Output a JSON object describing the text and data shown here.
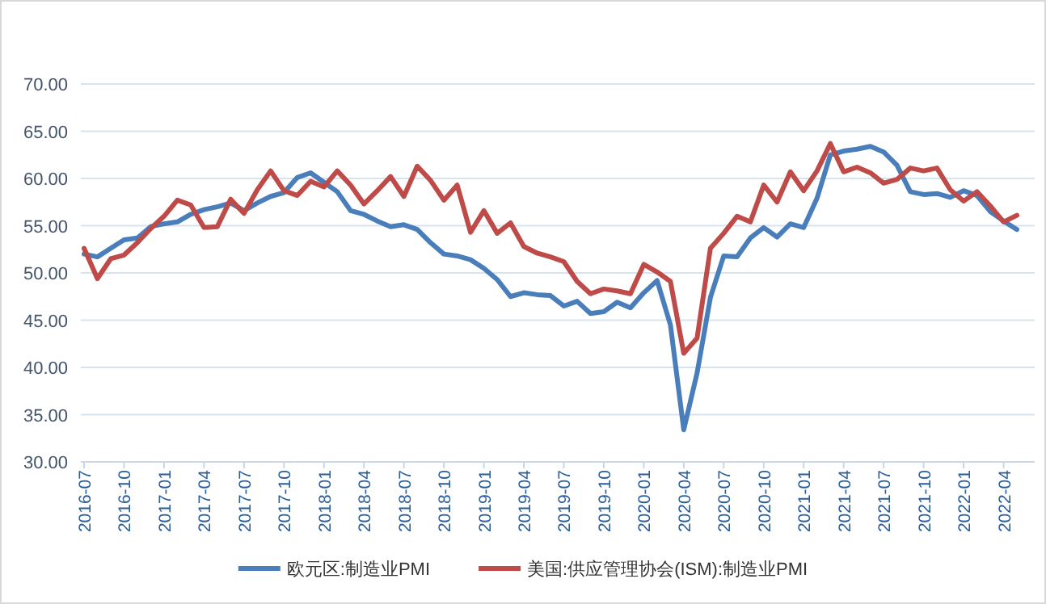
{
  "chart_data": {
    "type": "line",
    "categories": [
      "2016-07",
      null,
      null,
      "2016-10",
      null,
      null,
      "2017-01",
      null,
      null,
      "2017-04",
      null,
      null,
      "2017-07",
      null,
      null,
      "2017-10",
      null,
      null,
      "2018-01",
      null,
      null,
      "2018-04",
      null,
      null,
      "2018-07",
      null,
      null,
      "2018-10",
      null,
      null,
      "2019-01",
      null,
      null,
      "2019-04",
      null,
      null,
      "2019-07",
      null,
      null,
      "2019-10",
      null,
      null,
      "2020-01",
      null,
      null,
      "2020-04",
      null,
      null,
      "2020-07",
      null,
      null,
      "2020-10",
      null,
      null,
      "2021-01",
      null,
      null,
      "2021-04",
      null,
      null,
      "2021-07",
      null,
      null,
      "2021-10",
      null,
      null,
      "2022-01",
      null,
      null,
      "2022-04",
      null
    ],
    "series": [
      {
        "name": "欧元区:制造业PMI",
        "color": "#4a7ebb",
        "values": [
          52.0,
          51.7,
          52.6,
          53.5,
          53.7,
          54.9,
          55.2,
          55.4,
          56.2,
          56.7,
          57.0,
          57.4,
          56.6,
          57.4,
          58.1,
          58.5,
          60.1,
          60.6,
          59.6,
          58.6,
          56.6,
          56.2,
          55.5,
          54.9,
          55.1,
          54.6,
          53.2,
          52.0,
          51.8,
          51.4,
          50.5,
          49.3,
          47.5,
          47.9,
          47.7,
          47.6,
          46.5,
          47.0,
          45.7,
          45.9,
          46.9,
          46.3,
          47.9,
          49.2,
          44.5,
          33.4,
          39.4,
          47.4,
          51.8,
          51.7,
          53.7,
          54.8,
          53.8,
          55.2,
          54.8,
          57.9,
          62.5,
          62.9,
          63.1,
          63.4,
          62.8,
          61.4,
          58.6,
          58.3,
          58.4,
          58.0,
          58.7,
          58.2,
          56.5,
          55.5,
          54.6
        ]
      },
      {
        "name": "美国:供应管理协会(ISM):制造业PMI",
        "color": "#be4b48",
        "values": [
          52.6,
          49.4,
          51.5,
          51.9,
          53.2,
          54.7,
          56.0,
          57.7,
          57.2,
          54.8,
          54.9,
          57.8,
          56.3,
          58.8,
          60.8,
          58.7,
          58.2,
          59.7,
          59.1,
          60.8,
          59.3,
          57.3,
          58.7,
          60.2,
          58.1,
          61.3,
          59.8,
          57.7,
          59.3,
          54.3,
          56.6,
          54.2,
          55.3,
          52.8,
          52.1,
          51.7,
          51.2,
          49.1,
          47.8,
          48.3,
          48.1,
          47.8,
          50.9,
          50.1,
          49.1,
          41.5,
          43.1,
          52.6,
          54.2,
          56.0,
          55.4,
          59.3,
          57.5,
          60.7,
          58.7,
          60.8,
          63.7,
          60.7,
          61.2,
          60.6,
          59.5,
          59.9,
          61.1,
          60.8,
          61.1,
          58.8,
          57.6,
          58.6,
          57.1,
          55.4,
          56.1
        ]
      }
    ],
    "ylim": [
      30,
      70
    ],
    "yticks": [
      {
        "value": 30,
        "label": "30.00"
      },
      {
        "value": 35,
        "label": "35.00"
      },
      {
        "value": 40,
        "label": "40.00"
      },
      {
        "value": 45,
        "label": "45.00"
      },
      {
        "value": 50,
        "label": "50.00"
      },
      {
        "value": 55,
        "label": "55.00"
      },
      {
        "value": 60,
        "label": "60.00"
      },
      {
        "value": 65,
        "label": "65.00"
      },
      {
        "value": 70,
        "label": "70.00"
      }
    ],
    "grid": "y",
    "legend": "bottom"
  }
}
